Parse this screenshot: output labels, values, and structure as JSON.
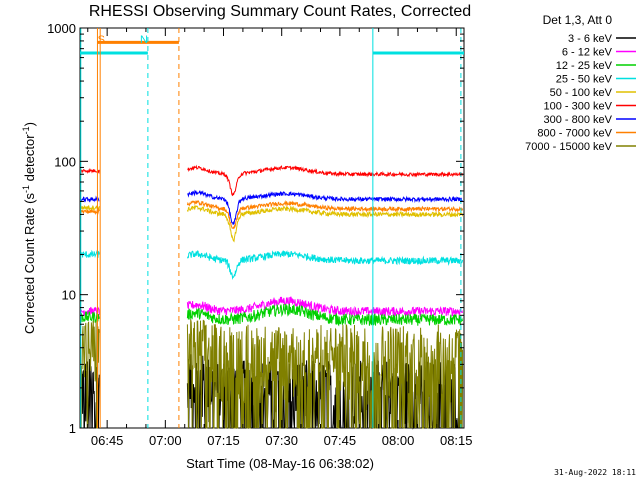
{
  "chart_data": {
    "type": "line",
    "title": "RHESSI Observing Summary Count Rates, Corrected",
    "xlabel": "Start Time (08-May-16 06:38:02)",
    "ylabel": "Corrected Count Rate (s",
    "ylabel_sup": "-1",
    "ylabel_tail": " detector",
    "ylabel_sup2": "-1",
    "ylabel_close": ")",
    "yscale": "log",
    "ylim": [
      1,
      1000
    ],
    "xlim_minutes": [
      0,
      99
    ],
    "y_ticks": [
      "1",
      "10",
      "100",
      "1000"
    ],
    "x_ticks": [
      {
        "label": "06:45",
        "minute": 7
      },
      {
        "label": "07:00",
        "minute": 22
      },
      {
        "label": "07:15",
        "minute": 37
      },
      {
        "label": "07:30",
        "minute": 52
      },
      {
        "label": "07:45",
        "minute": 67
      },
      {
        "label": "08:00",
        "minute": 82
      },
      {
        "label": "08:15",
        "minute": 97
      }
    ],
    "legend_header": "Det 1,3, Att 0",
    "footer_date": "31-Aug-2022 18:11",
    "gap_minutes": [
      6,
      27
    ],
    "series": [
      {
        "name": "3 - 6 keV",
        "color": "#000000",
        "base": 1.35,
        "noise": 0.9,
        "pre": 1.4,
        "spiky": true
      },
      {
        "name": "6 - 12 keV",
        "color": "#ff00ff",
        "base": 7.5,
        "noise": 0.08,
        "pre": 7.5,
        "dip": 0,
        "bump": 0.2
      },
      {
        "name": "12 - 25 keV",
        "color": "#00d000",
        "base": 6.5,
        "noise": 0.1,
        "pre": 6.8,
        "dip": 0,
        "bump": 0.2
      },
      {
        "name": "25 - 50 keV",
        "color": "#00e0e0",
        "base": 18,
        "noise": 0.06,
        "pre": 20,
        "dip": 0.08,
        "bump": 0.12
      },
      {
        "name": "50 - 100 keV",
        "color": "#e0c000",
        "base": 40,
        "noise": 0.04,
        "pre": 45,
        "dip": 0.12,
        "bump": 0.1
      },
      {
        "name": "100 - 300 keV",
        "color": "#ff0000",
        "base": 80,
        "noise": 0.03,
        "pre": 85,
        "dip": 0.1,
        "bump": 0.12
      },
      {
        "name": "300 - 800 keV",
        "color": "#0000ff",
        "base": 52,
        "noise": 0.035,
        "pre": 52,
        "dip": 0.12,
        "bump": 0.1
      },
      {
        "name": "800 - 7000 keV",
        "color": "#ff8000",
        "base": 44,
        "noise": 0.035,
        "pre": 42,
        "dip": 0.1,
        "bump": 0.1
      },
      {
        "name": "7000 - 15000 keV",
        "color": "#808000",
        "base": 2.5,
        "noise": 0.35,
        "pre": 2.8,
        "spiky": true
      }
    ],
    "annotations": [
      {
        "label": "S",
        "color": "#ff8000",
        "minute": 5.5
      },
      {
        "label": "N",
        "color": "#00e0e0",
        "minute": 16.5
      }
    ],
    "flags": [
      {
        "name": "saa-flag",
        "color": "#ff8000",
        "start_minute": 4.5,
        "end_minute": 25.5,
        "level": 780
      },
      {
        "name": "night-flag-1",
        "color": "#00e0e0",
        "start_minute": 0,
        "end_minute": 17.5,
        "level": 650
      },
      {
        "name": "night-flag-2",
        "color": "#00e0e0",
        "start_minute": 75.5,
        "end_minute": 99,
        "level": 650
      }
    ]
  }
}
